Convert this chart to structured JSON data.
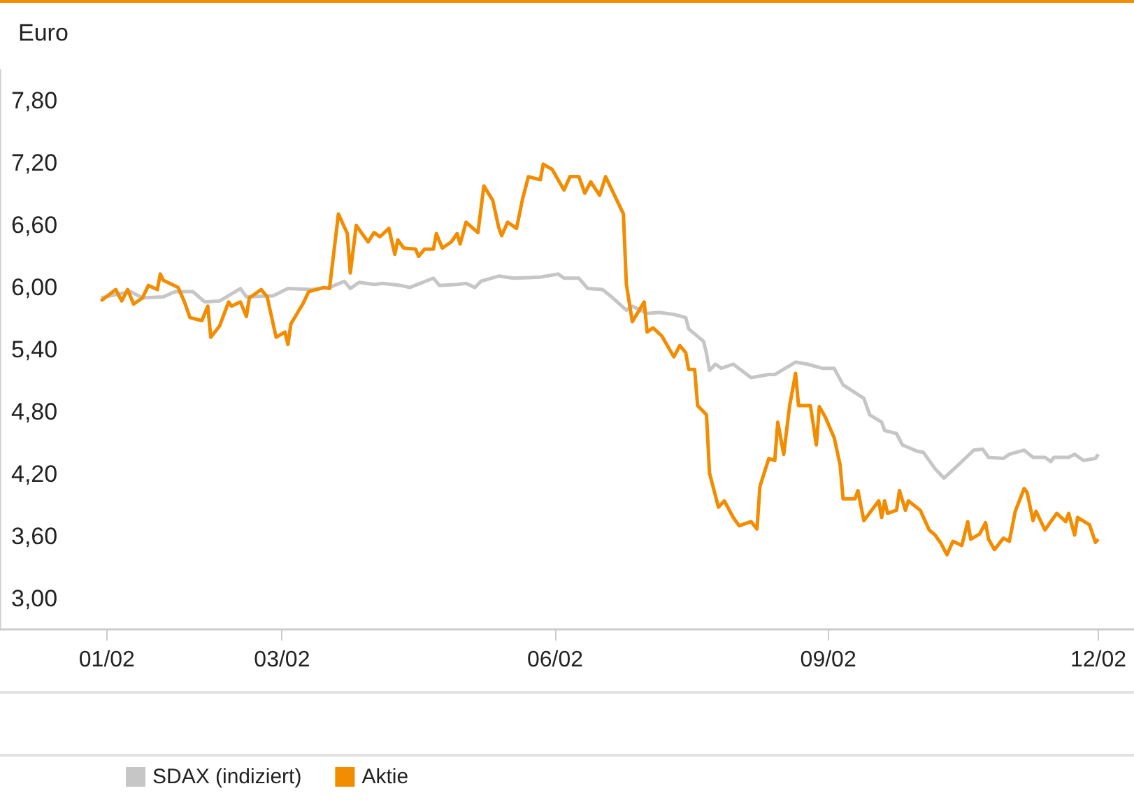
{
  "chart_data": {
    "type": "line",
    "ylabel": "Euro",
    "xlim": [
      "2001-11-26",
      "2002-12-13"
    ],
    "ylim": [
      2.7,
      8.1
    ],
    "yticks": [
      {
        "value": 3,
        "label": "3,00"
      },
      {
        "value": 3.6,
        "label": "3,60"
      },
      {
        "value": 4.2,
        "label": "4,20"
      },
      {
        "value": 4.8,
        "label": "4,80"
      },
      {
        "value": 5.4,
        "label": "5,40"
      },
      {
        "value": 6,
        "label": "6,00"
      },
      {
        "value": 6.6,
        "label": "6,60"
      },
      {
        "value": 7.2,
        "label": "7,20"
      },
      {
        "value": 7.8,
        "label": "7,80"
      }
    ],
    "xticks": [
      {
        "value": "2002-01-01",
        "label": "01/02"
      },
      {
        "value": "2002-03-01",
        "label": "03/02"
      },
      {
        "value": "2002-06-01",
        "label": "06/02"
      },
      {
        "value": "2002-09-01",
        "label": "09/02"
      },
      {
        "value": "2002-12-01",
        "label": "12/02"
      }
    ],
    "grid": false,
    "legend": "bottom",
    "marker": "none",
    "line_style": "solid",
    "series": [
      {
        "name": "SDAX (indiziert)",
        "color": "#c6c6c6",
        "x": [
          "2001-12-30",
          "2002-01-09",
          "2002-01-13",
          "2002-01-20",
          "2002-01-24",
          "2002-01-30",
          "2002-02-03",
          "2002-02-08",
          "2002-02-15",
          "2002-02-17",
          "2002-02-26",
          "2002-03-03",
          "2002-03-11",
          "2002-03-17",
          "2002-03-22",
          "2002-03-24",
          "2002-03-27",
          "2002-04-01",
          "2002-04-04",
          "2002-04-10",
          "2002-04-13",
          "2002-04-21",
          "2002-04-23",
          "2002-04-29",
          "2002-05-02",
          "2002-05-05",
          "2002-05-07",
          "2002-05-13",
          "2002-05-18",
          "2002-05-27",
          "2002-06-02",
          "2002-06-04",
          "2002-06-09",
          "2002-06-12",
          "2002-06-17",
          "2002-06-20",
          "2002-06-25",
          "2002-06-27",
          "2002-07-02",
          "2002-07-06",
          "2002-07-11",
          "2002-07-15",
          "2002-07-16",
          "2002-07-21",
          "2002-07-22",
          "2002-07-23",
          "2002-07-25",
          "2002-07-27",
          "2002-07-31",
          "2002-08-06",
          "2002-08-12",
          "2002-08-14",
          "2002-08-21",
          "2002-08-25",
          "2002-08-30",
          "2002-09-03",
          "2002-09-06",
          "2002-09-13",
          "2002-09-15",
          "2002-09-19",
          "2002-09-20",
          "2002-09-24",
          "2002-09-26",
          "2002-10-01",
          "2002-10-03",
          "2002-10-07",
          "2002-10-10",
          "2002-10-13",
          "2002-10-16",
          "2002-10-20",
          "2002-10-23",
          "2002-10-25",
          "2002-10-30",
          "2002-11-01",
          "2002-11-06",
          "2002-11-09",
          "2002-11-13",
          "2002-11-15",
          "2002-11-16",
          "2002-11-21",
          "2002-11-23",
          "2002-11-26",
          "2002-11-30",
          "2002-12-01"
        ],
        "values": [
          5.9,
          5.96,
          5.9,
          5.91,
          5.96,
          5.96,
          5.86,
          5.87,
          5.99,
          5.91,
          5.92,
          5.99,
          5.98,
          6.0,
          6.06,
          5.99,
          6.05,
          6.03,
          6.04,
          6.02,
          6.0,
          6.09,
          6.02,
          6.03,
          6.04,
          6.0,
          6.06,
          6.11,
          6.09,
          6.1,
          6.13,
          6.09,
          6.09,
          5.99,
          5.98,
          5.91,
          5.78,
          5.82,
          5.75,
          5.76,
          5.74,
          5.71,
          5.6,
          5.48,
          5.36,
          5.2,
          5.26,
          5.22,
          5.26,
          5.13,
          5.16,
          5.16,
          5.28,
          5.26,
          5.22,
          5.22,
          5.06,
          4.93,
          4.77,
          4.7,
          4.62,
          4.59,
          4.48,
          4.42,
          4.41,
          4.25,
          4.16,
          4.24,
          4.32,
          4.43,
          4.44,
          4.36,
          4.35,
          4.39,
          4.43,
          4.36,
          4.36,
          4.32,
          4.36,
          4.36,
          4.39,
          4.33,
          4.35,
          4.39
        ]
      },
      {
        "name": "Aktie",
        "color": "#f28c00",
        "x": [
          "2001-12-30",
          "2002-01-04",
          "2002-01-06",
          "2002-01-08",
          "2002-01-10",
          "2002-01-13",
          "2002-01-15",
          "2002-01-18",
          "2002-01-19",
          "2002-01-20",
          "2002-01-25",
          "2002-01-27",
          "2002-01-29",
          "2002-02-02",
          "2002-02-04",
          "2002-02-05",
          "2002-02-08",
          "2002-02-11",
          "2002-02-12",
          "2002-02-15",
          "2002-02-17",
          "2002-02-18",
          "2002-02-22",
          "2002-02-24",
          "2002-02-27",
          "2002-03-02",
          "2002-03-03",
          "2002-03-04",
          "2002-03-08",
          "2002-03-10",
          "2002-03-15",
          "2002-03-17",
          "2002-03-20",
          "2002-03-23",
          "2002-03-24",
          "2002-03-26",
          "2002-03-30",
          "2002-04-01",
          "2002-04-03",
          "2002-04-06",
          "2002-04-08",
          "2002-04-09",
          "2002-04-11",
          "2002-04-15",
          "2002-04-16",
          "2002-04-18",
          "2002-04-21",
          "2002-04-22",
          "2002-04-24",
          "2002-04-27",
          "2002-04-29",
          "2002-04-30",
          "2002-05-02",
          "2002-05-06",
          "2002-05-08",
          "2002-05-11",
          "2002-05-13",
          "2002-05-14",
          "2002-05-16",
          "2002-05-19",
          "2002-05-21",
          "2002-05-23",
          "2002-05-27",
          "2002-05-28",
          "2002-05-31",
          "2002-06-04",
          "2002-06-06",
          "2002-06-09",
          "2002-06-11",
          "2002-06-13",
          "2002-06-16",
          "2002-06-18",
          "2002-06-20",
          "2002-06-24",
          "2002-06-25",
          "2002-06-27",
          "2002-07-01",
          "2002-07-02",
          "2002-07-04",
          "2002-07-07",
          "2002-07-11",
          "2002-07-13",
          "2002-07-15",
          "2002-07-16",
          "2002-07-18",
          "2002-07-19",
          "2002-07-22",
          "2002-07-23",
          "2002-07-26",
          "2002-07-28",
          "2002-07-31",
          "2002-08-02",
          "2002-08-06",
          "2002-08-08",
          "2002-08-09",
          "2002-08-12",
          "2002-08-14",
          "2002-08-15",
          "2002-08-17",
          "2002-08-19",
          "2002-08-21",
          "2002-08-22",
          "2002-08-26",
          "2002-08-28",
          "2002-08-29",
          "2002-08-31",
          "2002-09-03",
          "2002-09-05",
          "2002-09-06",
          "2002-09-10",
          "2002-09-11",
          "2002-09-13",
          "2002-09-18",
          "2002-09-19",
          "2002-09-20",
          "2002-09-21",
          "2002-09-24",
          "2002-09-25",
          "2002-09-27",
          "2002-09-28",
          "2002-10-02",
          "2002-10-05",
          "2002-10-07",
          "2002-10-09",
          "2002-10-11",
          "2002-10-13",
          "2002-10-16",
          "2002-10-18",
          "2002-10-19",
          "2002-10-22",
          "2002-10-24",
          "2002-10-25",
          "2002-10-27",
          "2002-10-30",
          "2002-11-01",
          "2002-11-03",
          "2002-11-06",
          "2002-11-07",
          "2002-11-09",
          "2002-11-10",
          "2002-11-13",
          "2002-11-17",
          "2002-11-20",
          "2002-11-21",
          "2002-11-23",
          "2002-11-24",
          "2002-11-28",
          "2002-11-30",
          "2002-12-01"
        ],
        "values": [
          5.87,
          5.98,
          5.87,
          5.98,
          5.84,
          5.9,
          6.02,
          5.98,
          6.13,
          6.07,
          6.0,
          5.87,
          5.71,
          5.68,
          5.82,
          5.52,
          5.63,
          5.86,
          5.82,
          5.86,
          5.72,
          5.9,
          5.98,
          5.91,
          5.52,
          5.57,
          5.45,
          5.65,
          5.84,
          5.96,
          6.0,
          5.99,
          6.71,
          6.52,
          6.14,
          6.6,
          6.44,
          6.53,
          6.49,
          6.57,
          6.32,
          6.46,
          6.38,
          6.37,
          6.3,
          6.37,
          6.37,
          6.52,
          6.38,
          6.44,
          6.52,
          6.42,
          6.63,
          6.53,
          6.98,
          6.84,
          6.58,
          6.5,
          6.63,
          6.57,
          6.85,
          7.07,
          7.04,
          7.19,
          7.14,
          6.94,
          7.07,
          7.07,
          6.91,
          7.02,
          6.89,
          7.07,
          6.95,
          6.71,
          6.03,
          5.67,
          5.86,
          5.57,
          5.61,
          5.53,
          5.33,
          5.44,
          5.37,
          5.21,
          5.21,
          4.86,
          4.77,
          4.21,
          3.88,
          3.94,
          3.78,
          3.7,
          3.74,
          3.67,
          4.08,
          4.35,
          4.33,
          4.7,
          4.39,
          4.86,
          5.17,
          4.86,
          4.86,
          4.48,
          4.85,
          4.75,
          4.55,
          4.29,
          3.96,
          3.96,
          4.04,
          3.75,
          3.94,
          3.78,
          3.94,
          3.82,
          3.85,
          4.04,
          3.85,
          3.94,
          3.85,
          3.66,
          3.61,
          3.53,
          3.42,
          3.55,
          3.51,
          3.74,
          3.57,
          3.62,
          3.73,
          3.57,
          3.47,
          3.58,
          3.55,
          3.84,
          4.06,
          4.02,
          3.75,
          3.84,
          3.66,
          3.82,
          3.74,
          3.82,
          3.61,
          3.78,
          3.71,
          3.54,
          3.57
        ]
      }
    ]
  }
}
